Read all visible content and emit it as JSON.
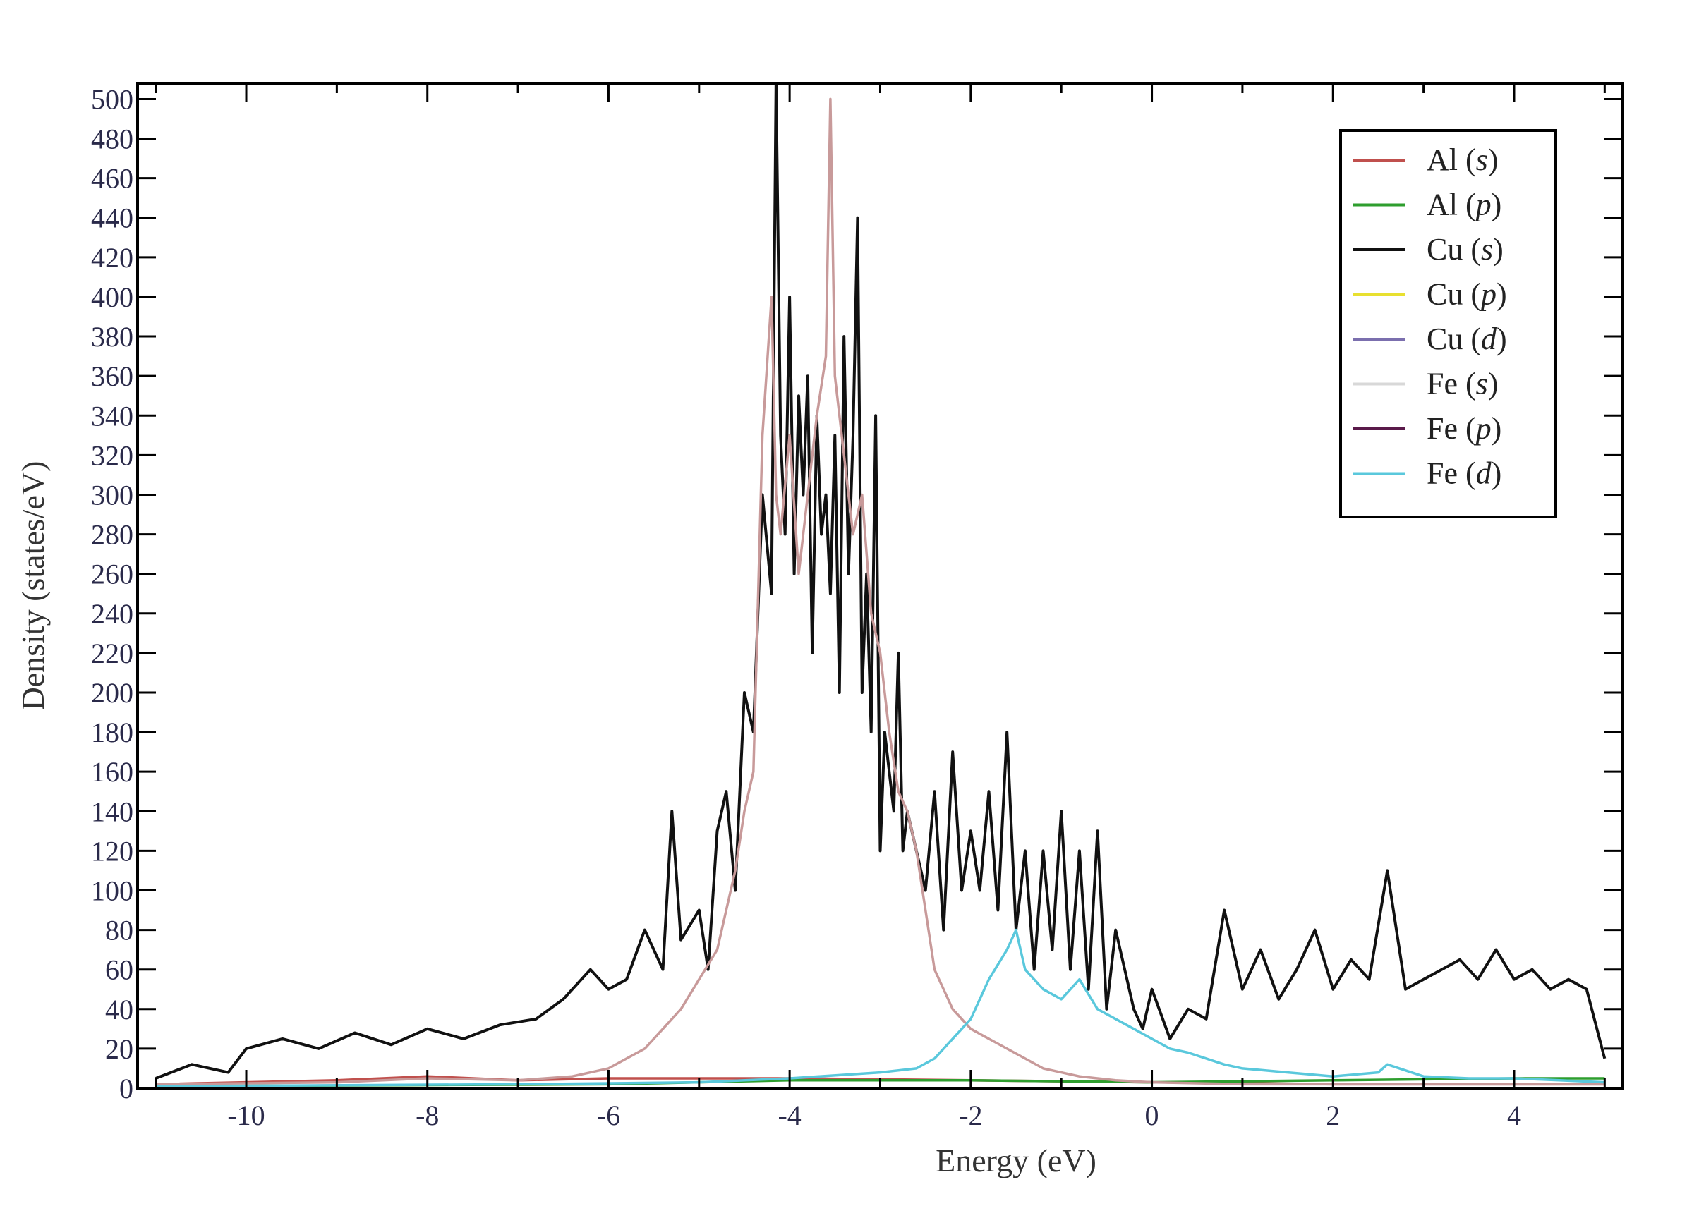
{
  "chart_data": {
    "type": "line",
    "xlabel": "Energy (eV)",
    "ylabel": "Density (states/eV)",
    "xlim": [
      -11.2,
      5.2
    ],
    "ylim": [
      0,
      508
    ],
    "x_ticks": [
      -10,
      -8,
      -6,
      -4,
      -2,
      0,
      2,
      4
    ],
    "x_tick_labels": [
      "-10",
      "-8",
      "-6",
      "-4",
      "-2",
      "0",
      "2",
      "4"
    ],
    "y_ticks": [
      0,
      20,
      40,
      60,
      80,
      100,
      120,
      140,
      160,
      180,
      200,
      220,
      240,
      260,
      280,
      300,
      320,
      340,
      360,
      380,
      400,
      420,
      440,
      460,
      480,
      500
    ],
    "y_tick_labels": [
      "0",
      "20",
      "40",
      "60",
      "80",
      "100",
      "120",
      "140",
      "160",
      "180",
      "200",
      "220",
      "240",
      "260",
      "280",
      "300",
      "320",
      "340",
      "360",
      "380",
      "400",
      "420",
      "440",
      "460",
      "480",
      "500"
    ],
    "grid": false,
    "legend_position": "top-right",
    "legend": [
      {
        "element": "Al",
        "orbital": "s",
        "color": "#c0504d"
      },
      {
        "element": "Al",
        "orbital": "p",
        "color": "#2e9e2e"
      },
      {
        "element": "Cu",
        "orbital": "s",
        "color": "#111111"
      },
      {
        "element": "Cu",
        "orbital": "p",
        "color": "#e8e030"
      },
      {
        "element": "Cu",
        "orbital": "d",
        "color": "#7b6fae"
      },
      {
        "element": "Fe",
        "orbital": "s",
        "color": "#d8d8d8"
      },
      {
        "element": "Fe",
        "orbital": "p",
        "color": "#5a1a4a"
      },
      {
        "element": "Fe",
        "orbital": "d",
        "color": "#5ac8dc"
      }
    ],
    "series": [
      {
        "name": "Cu (s)",
        "color": "#111111",
        "x": [
          -11.0,
          -10.6,
          -10.2,
          -10.0,
          -9.6,
          -9.2,
          -8.8,
          -8.4,
          -8.0,
          -7.6,
          -7.2,
          -6.8,
          -6.5,
          -6.2,
          -6.0,
          -5.8,
          -5.6,
          -5.4,
          -5.3,
          -5.2,
          -5.0,
          -4.9,
          -4.8,
          -4.7,
          -4.6,
          -4.5,
          -4.4,
          -4.3,
          -4.2,
          -4.15,
          -4.1,
          -4.05,
          -4.0,
          -3.95,
          -3.9,
          -3.85,
          -3.8,
          -3.75,
          -3.7,
          -3.65,
          -3.6,
          -3.55,
          -3.5,
          -3.45,
          -3.4,
          -3.35,
          -3.3,
          -3.25,
          -3.2,
          -3.15,
          -3.1,
          -3.05,
          -3.0,
          -2.95,
          -2.9,
          -2.85,
          -2.8,
          -2.75,
          -2.7,
          -2.6,
          -2.5,
          -2.4,
          -2.3,
          -2.2,
          -2.1,
          -2.0,
          -1.9,
          -1.8,
          -1.7,
          -1.6,
          -1.5,
          -1.4,
          -1.3,
          -1.2,
          -1.1,
          -1.0,
          -0.9,
          -0.8,
          -0.7,
          -0.6,
          -0.5,
          -0.4,
          -0.3,
          -0.2,
          -0.1,
          0.0,
          0.2,
          0.4,
          0.6,
          0.8,
          1.0,
          1.2,
          1.4,
          1.6,
          1.8,
          2.0,
          2.2,
          2.4,
          2.6,
          2.8,
          3.0,
          3.2,
          3.4,
          3.6,
          3.8,
          4.0,
          4.2,
          4.4,
          4.6,
          4.8,
          5.0
        ],
        "y": [
          5,
          12,
          8,
          20,
          25,
          20,
          28,
          22,
          30,
          25,
          32,
          35,
          45,
          60,
          50,
          55,
          80,
          60,
          140,
          75,
          90,
          60,
          130,
          150,
          100,
          200,
          180,
          300,
          250,
          510,
          330,
          280,
          400,
          260,
          350,
          300,
          360,
          220,
          340,
          280,
          300,
          250,
          330,
          200,
          380,
          260,
          330,
          440,
          200,
          260,
          180,
          340,
          120,
          180,
          160,
          140,
          220,
          120,
          140,
          120,
          100,
          150,
          80,
          170,
          100,
          130,
          100,
          150,
          90,
          180,
          80,
          120,
          60,
          120,
          70,
          140,
          60,
          120,
          50,
          130,
          40,
          80,
          60,
          40,
          30,
          50,
          25,
          40,
          35,
          90,
          50,
          70,
          45,
          60,
          80,
          50,
          65,
          55,
          110,
          50,
          55,
          60,
          65,
          55,
          70,
          55,
          60,
          50,
          55,
          50,
          15
        ]
      },
      {
        "name": "Cu (d)",
        "color": "#c89a9a",
        "x": [
          -11.0,
          -9.0,
          -8.0,
          -7.0,
          -6.4,
          -6.0,
          -5.8,
          -5.6,
          -5.4,
          -5.2,
          -5.0,
          -4.8,
          -4.6,
          -4.5,
          -4.4,
          -4.3,
          -4.2,
          -4.15,
          -4.1,
          -4.0,
          -3.9,
          -3.8,
          -3.7,
          -3.6,
          -3.55,
          -3.5,
          -3.4,
          -3.3,
          -3.2,
          -3.1,
          -3.0,
          -2.9,
          -2.8,
          -2.7,
          -2.6,
          -2.5,
          -2.4,
          -2.2,
          -2.0,
          -1.8,
          -1.6,
          -1.4,
          -1.2,
          -1.0,
          -0.8,
          -0.6,
          -0.4,
          0.0,
          1.0,
          2.0,
          3.0,
          4.0,
          5.0
        ],
        "y": [
          2,
          3,
          5,
          4,
          6,
          10,
          15,
          20,
          30,
          40,
          55,
          70,
          110,
          140,
          160,
          330,
          400,
          300,
          280,
          330,
          260,
          300,
          340,
          370,
          500,
          360,
          320,
          280,
          300,
          240,
          220,
          180,
          150,
          140,
          120,
          90,
          60,
          40,
          30,
          25,
          20,
          15,
          10,
          8,
          6,
          5,
          4,
          3,
          2,
          2,
          2,
          2,
          2
        ]
      },
      {
        "name": "Fe (d)",
        "color": "#5ac8dc",
        "x": [
          -11.0,
          -7.0,
          -5.0,
          -4.0,
          -3.0,
          -2.6,
          -2.4,
          -2.2,
          -2.0,
          -1.8,
          -1.6,
          -1.5,
          -1.4,
          -1.2,
          -1.0,
          -0.8,
          -0.6,
          -0.4,
          -0.2,
          0.0,
          0.2,
          0.4,
          0.6,
          0.8,
          1.0,
          1.5,
          2.0,
          2.5,
          2.6,
          3.0,
          3.5,
          4.0,
          4.5,
          5.0
        ],
        "y": [
          1,
          2,
          3,
          5,
          8,
          10,
          15,
          25,
          35,
          55,
          70,
          80,
          60,
          50,
          45,
          55,
          40,
          35,
          30,
          25,
          20,
          18,
          15,
          12,
          10,
          8,
          6,
          8,
          12,
          6,
          5,
          5,
          4,
          3
        ]
      },
      {
        "name": "Al (p)",
        "color": "#2e9e2e",
        "x": [
          -11.0,
          -6.0,
          -4.0,
          -2.0,
          0.0,
          2.0,
          4.0,
          5.0
        ],
        "y": [
          1,
          2,
          4,
          4,
          3,
          4,
          5,
          5
        ]
      },
      {
        "name": "Al (s)",
        "color": "#c0504d",
        "x": [
          -11.0,
          -9.0,
          -8.0,
          -7.0,
          -6.0,
          -4.0,
          -2.0,
          0.0,
          2.0,
          5.0
        ],
        "y": [
          2,
          4,
          6,
          4,
          5,
          5,
          4,
          3,
          2,
          2
        ]
      }
    ]
  }
}
